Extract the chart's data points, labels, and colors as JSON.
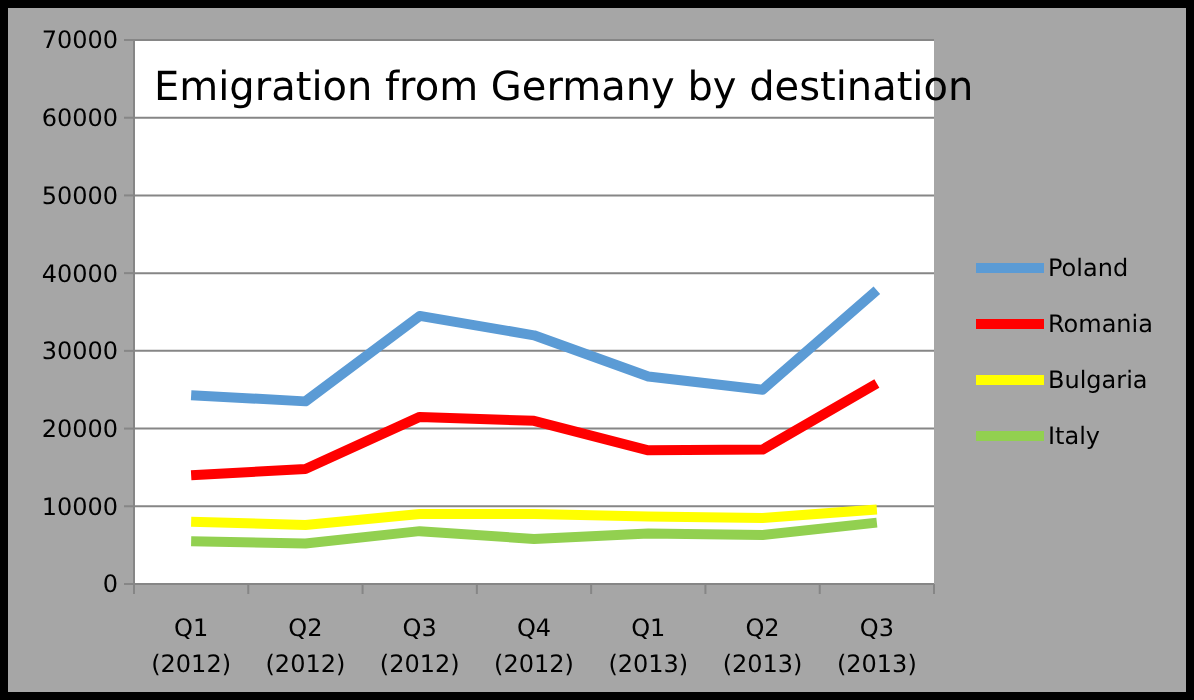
{
  "chart_data": {
    "type": "line",
    "title": "Emigration from Germany by destination",
    "categories": [
      "Q1\n(2012)",
      "Q2\n(2012)",
      "Q3\n(2012)",
      "Q4\n(2012)",
      "Q1\n(2013)",
      "Q2\n(2013)",
      "Q3\n(2013)"
    ],
    "series": [
      {
        "name": "Poland",
        "color": "#5b9bd5",
        "values": [
          24300,
          23500,
          34500,
          32000,
          26700,
          25000,
          37800
        ]
      },
      {
        "name": "Romania",
        "color": "#ff0000",
        "values": [
          14000,
          14800,
          21500,
          21000,
          17200,
          17300,
          25800
        ]
      },
      {
        "name": "Bulgaria",
        "color": "#ffff00",
        "values": [
          8000,
          7600,
          9000,
          9000,
          8700,
          8500,
          9600
        ]
      },
      {
        "name": "Italy",
        "color": "#92d050",
        "values": [
          5500,
          5200,
          6800,
          5800,
          6500,
          6300,
          7900
        ]
      }
    ],
    "ylim": [
      0,
      70000
    ],
    "yticks": [
      0,
      10000,
      20000,
      30000,
      40000,
      50000,
      60000,
      70000
    ],
    "grid": "y",
    "legend": "right",
    "marker": "none",
    "line_style": "solid"
  }
}
